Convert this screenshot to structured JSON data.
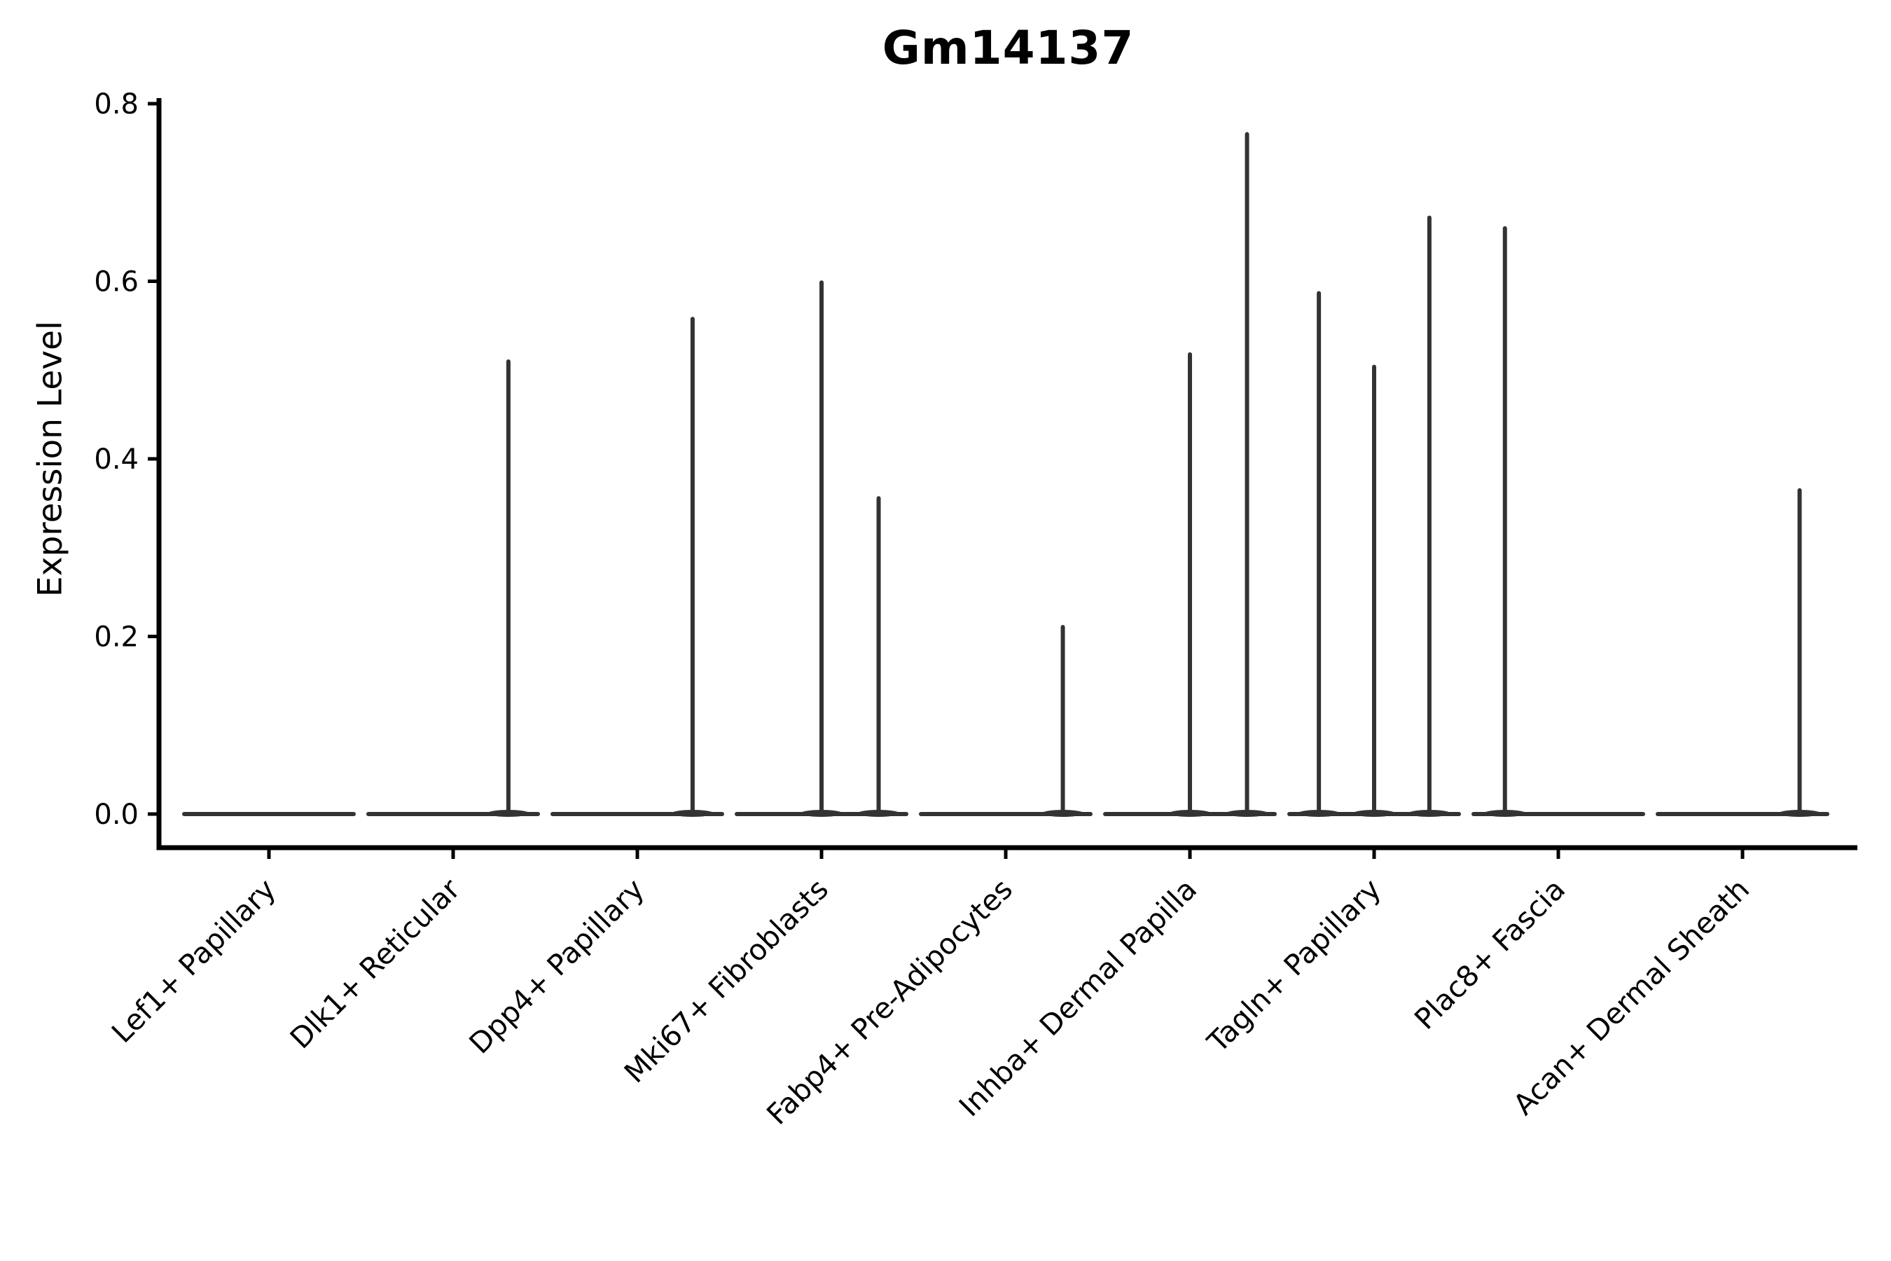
{
  "chart_data": {
    "type": "violin",
    "title": "Gm14137",
    "ylabel": "Expression Level",
    "xlabel": "",
    "grid": false,
    "legend": null,
    "ylim": [
      -0.04,
      0.81
    ],
    "yticks": [
      "0.0",
      "0.2",
      "0.4",
      "0.6",
      "0.8"
    ],
    "ytick_values": [
      0.0,
      0.2,
      0.4,
      0.6,
      0.8
    ],
    "categories": [
      "Lef1+ Papillary",
      "Dlk1+ Reticular",
      "Dpp4+ Papillary",
      "Mki67+ Fibroblasts",
      "Fabp4+ Pre-Adipocytes",
      "Inhba+ Dermal Papilla",
      "Tagln+ Papillary",
      "Plac8+ Fascia",
      "Acan+ Dermal Sheath"
    ],
    "series": [
      {
        "name": "Lef1+ Papillary",
        "spikes": []
      },
      {
        "name": "Dlk1+ Reticular",
        "spikes": [
          {
            "offset": 0.3,
            "value": 0.512
          }
        ]
      },
      {
        "name": "Dpp4+ Papillary",
        "spikes": [
          {
            "offset": 0.3,
            "value": 0.56
          }
        ]
      },
      {
        "name": "Mki67+ Fibroblasts",
        "spikes": [
          {
            "offset": 0.0,
            "value": 0.601
          },
          {
            "offset": 0.31,
            "value": 0.358
          }
        ]
      },
      {
        "name": "Fabp4+ Pre-Adipocytes",
        "spikes": [
          {
            "offset": 0.31,
            "value": 0.213
          }
        ]
      },
      {
        "name": "Inhba+ Dermal Papilla",
        "spikes": [
          {
            "offset": 0.0,
            "value": 0.52
          },
          {
            "offset": 0.31,
            "value": 0.768
          }
        ]
      },
      {
        "name": "Tagln+ Papillary",
        "spikes": [
          {
            "offset": -0.3,
            "value": 0.589
          },
          {
            "offset": 0.0,
            "value": 0.506
          },
          {
            "offset": 0.3,
            "value": 0.674
          }
        ]
      },
      {
        "name": "Plac8+ Fascia",
        "spikes": [
          {
            "offset": -0.29,
            "value": 0.662
          }
        ]
      },
      {
        "name": "Acan+ Dermal Sheath",
        "spikes": [
          {
            "offset": 0.31,
            "value": 0.367
          }
        ]
      }
    ],
    "colors": {
      "background": "#ffffff",
      "axis_ink": "#000000",
      "violin_ink": "#333333",
      "text_ink": "#000000"
    }
  }
}
